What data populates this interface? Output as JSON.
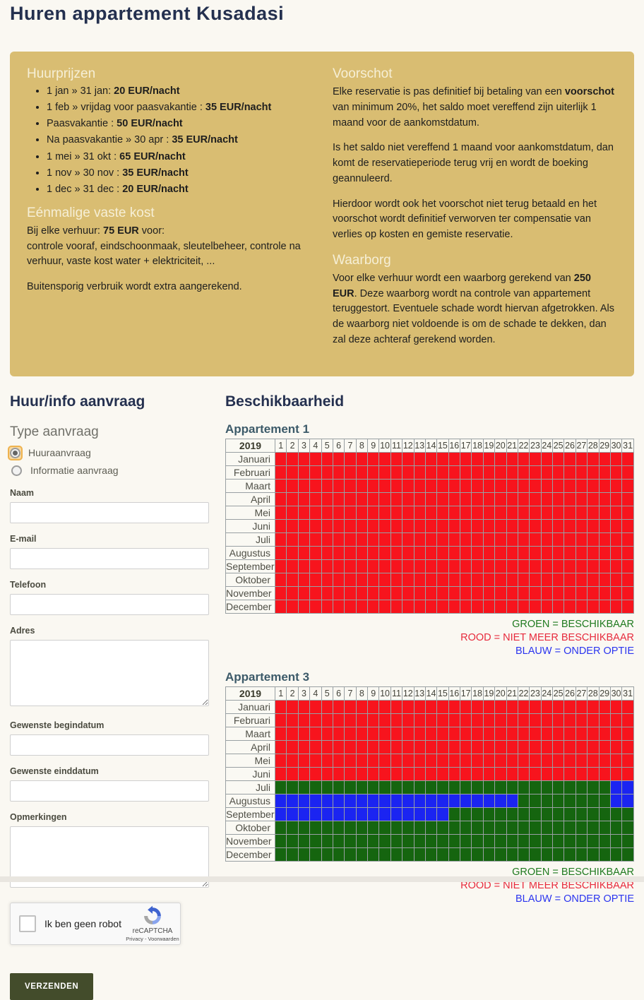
{
  "page": {
    "title": "Huren appartement Kusadasi"
  },
  "info_box": {
    "bg_color": "#d9bd72",
    "left": {
      "prices_heading": "Huurprijzen",
      "price_items": [
        {
          "prefix": "1 jan » 31 jan: ",
          "bold": "20 EUR/nacht"
        },
        {
          "prefix": "1 feb » vrijdag voor paasvakantie : ",
          "bold": "35 EUR/nacht"
        },
        {
          "prefix": "Paasvakantie : ",
          "bold": "50 EUR/nacht"
        },
        {
          "prefix": "Na paasvakantie » 30 apr : ",
          "bold": "35 EUR/nacht"
        },
        {
          "prefix": "1 mei » 31 okt : ",
          "bold": "65 EUR/nacht"
        },
        {
          "prefix": "1 nov » 30 nov : ",
          "bold": "35 EUR/nacht"
        },
        {
          "prefix": "1 dec » 31 dec : ",
          "bold": "20 EUR/nacht"
        }
      ],
      "fixed_cost_heading": "Eénmalige vaste kost",
      "fixed1_prefix": "Bij elke verhuur: ",
      "fixed1_bold": "75 EUR",
      "fixed1_suffix": " voor:",
      "fixed2": "controle vooraf, eindschoonmaak, sleutelbeheer, controle na verhuur, vaste kost water + elektriciteit, ...",
      "fixed3": "Buitensporig verbruik wordt extra aangerekend."
    },
    "right": {
      "advance_heading": "Voorschot",
      "p1_prefix": "Elke reservatie is pas definitief bij betaling van een ",
      "p1_bold": "voorschot",
      "p1_suffix": " van minimum 20%, het saldo moet vereffend zijn uiterlijk 1 maand voor de aankomstdatum.",
      "p2": "Is het saldo niet vereffend 1 maand voor aankomstdatum, dan komt de reservatieperiode terug vrij en wordt de boeking geannuleerd.",
      "p3": "Hierdoor wordt ook het voorschot niet terug betaald en het voorschot wordt definitief verworven ter compensatie van verlies op kosten en gemiste reservatie.",
      "deposit_heading": "Waarborg",
      "dp_prefix": "Voor elke verhuur wordt een waarborg gerekend van ",
      "dp_bold": "250 EUR",
      "dp_suffix": ". Deze waarborg wordt na controle van appartement teruggestort. Eventuele schade wordt hiervan afgetrokken. Als de waarborg niet voldoende is om de schade te dekken, dan zal deze achteraf gerekend worden."
    }
  },
  "form": {
    "heading": "Huur/info aanvraag",
    "type_heading": "Type aanvraag",
    "radios": [
      {
        "label": "Huuraanvraag",
        "selected": true
      },
      {
        "label": "Informatie aanvraag",
        "selected": false
      }
    ],
    "fields": [
      {
        "label": "Naam",
        "type": "input",
        "value": ""
      },
      {
        "label": "E-mail",
        "type": "input",
        "value": ""
      },
      {
        "label": "Telefoon",
        "type": "input",
        "value": ""
      },
      {
        "label": "Adres",
        "type": "textarea",
        "value": ""
      },
      {
        "label": "Gewenste begindatum",
        "type": "input",
        "value": ""
      },
      {
        "label": "Gewenste einddatum",
        "type": "input",
        "value": ""
      },
      {
        "label": "Opmerkingen",
        "type": "textarea",
        "value": ""
      }
    ],
    "recaptcha": {
      "label": "Ik ben geen robot",
      "brand": "reCAPTCHA",
      "links": "Privacy - Voorwaarden",
      "checked": false
    },
    "submit_label": "VERZENDEN"
  },
  "availability": {
    "heading": "Beschikbaarheid",
    "year": "2019",
    "days": [
      "1",
      "2",
      "3",
      "4",
      "5",
      "6",
      "7",
      "8",
      "9",
      "10",
      "11",
      "12",
      "13",
      "14",
      "15",
      "16",
      "17",
      "18",
      "19",
      "20",
      "21",
      "22",
      "23",
      "24",
      "25",
      "26",
      "27",
      "28",
      "29",
      "30",
      "31"
    ],
    "months": [
      "Januari",
      "Februari",
      "Maart",
      "April",
      "Mei",
      "Juni",
      "Juli",
      "Augustus",
      "September",
      "Oktober",
      "November",
      "December"
    ],
    "colors": {
      "R": "#f7141d",
      "G": "#15650f",
      "B": "#1b24f1"
    },
    "legend": [
      {
        "text": "GROEN = BESCHIKBAAR",
        "color": "#1f7a1f"
      },
      {
        "text": "ROOD = NIET MEER BESCHIKBAAR",
        "color": "#e72a3c"
      },
      {
        "text": "BLAUW = ONDER OPTIE",
        "color": "#2b35ef"
      }
    ],
    "tables": [
      {
        "title": "Appartement 1",
        "rows": [
          "RRRRRRRRRRRRRRRRRRRRRRRRRRRRRRR",
          "RRRRRRRRRRRRRRRRRRRRRRRRRRRRRRR",
          "RRRRRRRRRRRRRRRRRRRRRRRRRRRRRRR",
          "RRRRRRRRRRRRRRRRRRRRRRRRRRRRRRR",
          "RRRRRRRRRRRRRRRRRRRRRRRRRRRRRRR",
          "RRRRRRRRRRRRRRRRRRRRRRRRRRRRRRR",
          "RRRRRRRRRRRRRRRRRRRRRRRRRRRRRRR",
          "RRRRRRRRRRRRRRRRRRRRRRRRRRRRRRR",
          "RRRRRRRRRRRRRRRRRRRRRRRRRRRRRRR",
          "RRRRRRRRRRRRRRRRRRRRRRRRRRRRRRR",
          "RRRRRRRRRRRRRRRRRRRRRRRRRRRRRRR",
          "RRRRRRRRRRRRRRRRRRRRRRRRRRRRRRR"
        ]
      },
      {
        "title": "Appartement 3",
        "rows": [
          "RRRRRRRRRRRRRRRRRRRRRRRRRRRRRRR",
          "RRRRRRRRRRRRRRRRRRRRRRRRRRRRRRR",
          "RRRRRRRRRRRRRRRRRRRRRRRRRRRRRRR",
          "RRRRRRRRRRRRRRRRRRRRRRRRRRRRRRR",
          "RRRRRRRRRRRRRRRRRRRRRRRRRRRRRRR",
          "RRRRRRRRRRRRRRRRRRRRRRRRRRRRRRR",
          "GGGGGGGGGGGGGGGGGGGGGGGGGGGGGBB",
          "BBBBBBBBBBBBBBBBBBBBBGGGGGGGGBB",
          "BBBBBBBBBBBBBBBGGGGGGGGGGGGGGGG",
          "GGGGGGGGGGGGGGGGGGGGGGGGGGGGGGG",
          "GGGGGGGGGGGGGGGGGGGGGGGGGGGGGGG",
          "GGGGGGGGGGGGGGGGGGGGGGGGGGGGGGG"
        ]
      }
    ]
  }
}
